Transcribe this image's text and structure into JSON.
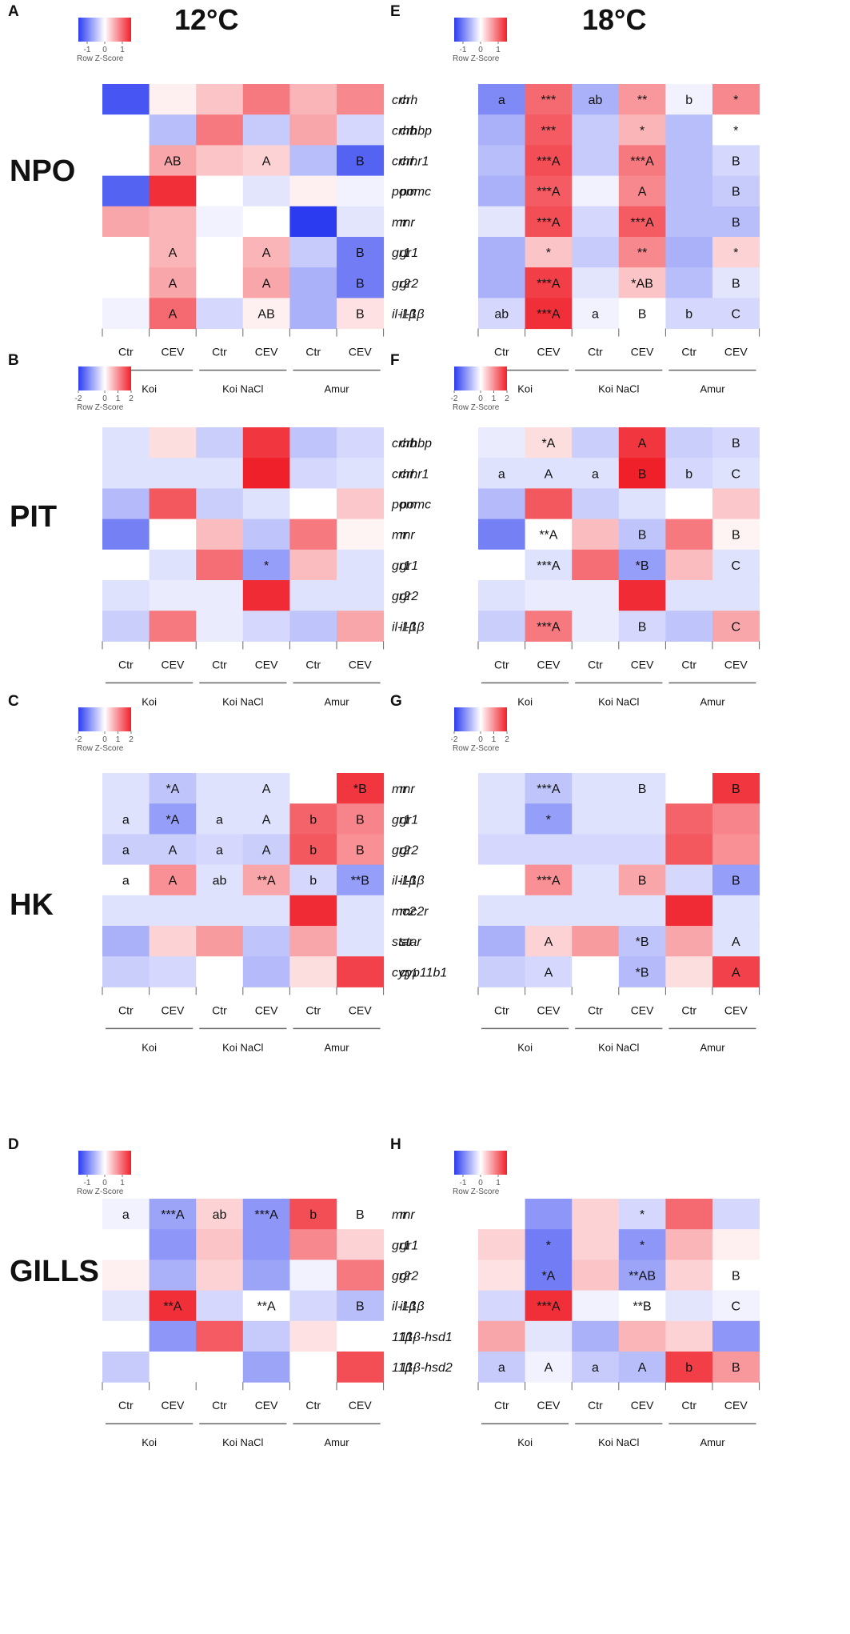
{
  "temps": [
    "12°C",
    "18°C"
  ],
  "tissues": [
    "NPO",
    "PIT",
    "HK",
    "GILLS"
  ],
  "columns": [
    "Ctr",
    "CEV",
    "Ctr",
    "CEV",
    "Ctr",
    "CEV"
  ],
  "groups": [
    "Koi",
    "Koi NaCl",
    "Amur"
  ],
  "scale_title": "Row Z-Score",
  "colors": {
    "low": "#2b3cf0",
    "mid": "#ffffff",
    "high": "#f0202a",
    "text": "#111111",
    "axis": "#666666"
  },
  "chart_data": [
    {
      "type": "heatmap",
      "panel": "A",
      "temp": "12°C",
      "tissue": "NPO",
      "scale_ticks": [
        "-1",
        "0",
        "1"
      ],
      "scale_range": [
        -1.5,
        1.5
      ],
      "rows": [
        "crh",
        "crhbp",
        "crhr1",
        "pomc",
        "mr",
        "gr1",
        "gr2",
        "il-1β"
      ],
      "values": [
        [
          -1.3,
          0.1,
          0.4,
          0.9,
          0.5,
          0.8
        ],
        [
          0.0,
          -0.5,
          0.9,
          -0.4,
          0.6,
          -0.3
        ],
        [
          0.0,
          0.6,
          0.4,
          0.3,
          -0.5,
          -1.2
        ],
        [
          -1.2,
          1.4,
          0.0,
          -0.2,
          0.1,
          -0.1
        ],
        [
          0.6,
          0.5,
          -0.1,
          0.0,
          -1.5,
          -0.2
        ],
        [
          0.0,
          0.5,
          0.0,
          0.5,
          -0.4,
          -1.0
        ],
        [
          0.0,
          0.6,
          0.0,
          0.6,
          -0.6,
          -1.0
        ],
        [
          -0.1,
          1.0,
          -0.3,
          0.1,
          -0.6,
          0.2
        ]
      ],
      "annotations": [
        [
          "",
          "",
          "",
          "",
          "",
          ""
        ],
        [
          "",
          "",
          "",
          "",
          "",
          ""
        ],
        [
          "",
          "AB",
          "",
          "A",
          "",
          "B"
        ],
        [
          "",
          "",
          "",
          "",
          "",
          ""
        ],
        [
          "",
          "",
          "",
          "",
          "",
          ""
        ],
        [
          "",
          "A",
          "",
          "A",
          "",
          "B"
        ],
        [
          "",
          "A",
          "",
          "A",
          "",
          "B"
        ],
        [
          "",
          "A",
          "",
          "AB",
          "",
          "B"
        ]
      ]
    },
    {
      "type": "heatmap",
      "panel": "B",
      "temp": "12°C",
      "tissue": "PIT",
      "scale_ticks": [
        "-2",
        "0",
        "1",
        "2"
      ],
      "scale_range": [
        -2,
        2
      ],
      "rows": [
        "crhbp",
        "crhr1",
        "pomc",
        "mr",
        "gr1",
        "gr2",
        "il-1β"
      ],
      "values": [
        [
          -0.3,
          0.3,
          -0.5,
          1.8,
          -0.6,
          -0.4
        ],
        [
          -0.3,
          -0.3,
          -0.3,
          2.0,
          -0.4,
          -0.3
        ],
        [
          -0.7,
          1.5,
          -0.5,
          -0.3,
          0.0,
          0.5
        ],
        [
          -1.3,
          0.0,
          0.6,
          -0.6,
          1.2,
          0.1
        ],
        [
          0.0,
          -0.3,
          1.3,
          -1.0,
          0.6,
          -0.3
        ],
        [
          -0.3,
          -0.2,
          -0.2,
          1.9,
          -0.3,
          -0.3
        ],
        [
          -0.5,
          1.2,
          -0.2,
          -0.4,
          -0.6,
          0.8
        ]
      ],
      "annotations": [
        [
          "",
          "",
          "",
          "",
          "",
          ""
        ],
        [
          "",
          "",
          "",
          "",
          "",
          ""
        ],
        [
          "",
          "",
          "",
          "",
          "",
          ""
        ],
        [
          "",
          "",
          "",
          "",
          "",
          ""
        ],
        [
          "",
          "",
          "",
          "*",
          "",
          ""
        ],
        [
          "",
          "",
          "",
          "",
          "",
          ""
        ],
        [
          "",
          "",
          "",
          "",
          "",
          ""
        ]
      ]
    },
    {
      "type": "heatmap",
      "panel": "C",
      "temp": "12°C",
      "tissue": "HK",
      "scale_ticks": [
        "-2",
        "0",
        "1",
        "2"
      ],
      "scale_range": [
        -2,
        2
      ],
      "rows": [
        "mr",
        "gr1",
        "gr2",
        "il-1β",
        "mc2r",
        "star",
        "cyp11b1"
      ],
      "values": [
        [
          -0.3,
          -0.6,
          -0.3,
          -0.3,
          0.0,
          1.8
        ],
        [
          -0.3,
          -1.0,
          -0.3,
          -0.3,
          1.4,
          1.1
        ],
        [
          -0.5,
          -0.5,
          -0.4,
          -0.5,
          1.5,
          1.0
        ],
        [
          0.0,
          1.0,
          -0.3,
          0.8,
          -0.4,
          -1.0
        ],
        [
          -0.3,
          -0.3,
          -0.3,
          -0.3,
          1.9,
          -0.3
        ],
        [
          -0.8,
          0.4,
          0.9,
          -0.6,
          0.8,
          -0.3
        ],
        [
          -0.5,
          -0.4,
          0.0,
          -0.7,
          0.3,
          1.7
        ]
      ],
      "annotations": [
        [
          "",
          "*A",
          "",
          "A",
          "",
          "*B"
        ],
        [
          "a",
          "*A",
          "a",
          "A",
          "b",
          "B"
        ],
        [
          "a",
          "A",
          "a",
          "A",
          "b",
          "B"
        ],
        [
          "a",
          "A",
          "ab",
          "**A",
          "b",
          "**B"
        ],
        [
          "",
          "",
          "",
          "",
          "",
          ""
        ],
        [
          "",
          "",
          "",
          "",
          "",
          ""
        ],
        [
          "",
          "",
          "",
          "",
          "",
          ""
        ]
      ]
    },
    {
      "type": "heatmap",
      "panel": "D",
      "temp": "12°C",
      "tissue": "GILLS",
      "scale_ticks": [
        "-1",
        "0",
        "1"
      ],
      "scale_range": [
        -1.5,
        1.5
      ],
      "rows": [
        "mr",
        "gr1",
        "gr2",
        "il-1β",
        "11β-hsd1",
        "11β-hsd2"
      ],
      "values": [
        [
          -0.1,
          -0.7,
          0.3,
          -0.8,
          1.2,
          0.0
        ],
        [
          0.0,
          -0.8,
          0.4,
          -0.8,
          0.8,
          0.3
        ],
        [
          0.1,
          -0.6,
          0.3,
          -0.7,
          -0.1,
          0.9
        ],
        [
          -0.2,
          1.4,
          -0.3,
          0.0,
          -0.3,
          -0.5
        ],
        [
          0.0,
          -0.8,
          1.1,
          -0.4,
          0.2,
          0.0
        ],
        [
          -0.4,
          0.0,
          0.0,
          -0.7,
          0.0,
          1.2
        ]
      ],
      "annotations": [
        [
          "a",
          "***A",
          "ab",
          "***A",
          "b",
          "B"
        ],
        [
          "",
          "",
          "",
          "",
          "",
          ""
        ],
        [
          "",
          "",
          "",
          "",
          "",
          ""
        ],
        [
          "",
          "**A",
          "",
          "**A",
          "",
          "B"
        ],
        [
          "",
          "",
          "",
          "",
          "",
          ""
        ],
        [
          "",
          "",
          "",
          "",
          "",
          ""
        ]
      ]
    },
    {
      "type": "heatmap",
      "panel": "E",
      "temp": "18°C",
      "tissue": "NPO",
      "scale_ticks": [
        "-1",
        "0",
        "1"
      ],
      "scale_range": [
        -1.5,
        1.5
      ],
      "rows": [
        "crh",
        "crhbp",
        "crhr1",
        "pomc",
        "mr",
        "gr1",
        "gr2",
        "il-1β"
      ],
      "values": [
        [
          -0.9,
          1.0,
          -0.6,
          0.7,
          -0.1,
          0.8
        ],
        [
          -0.6,
          1.1,
          -0.4,
          0.5,
          -0.5,
          0.0
        ],
        [
          -0.5,
          1.2,
          -0.4,
          0.9,
          -0.5,
          -0.3
        ],
        [
          -0.6,
          1.1,
          -0.1,
          0.8,
          -0.5,
          -0.4
        ],
        [
          -0.2,
          1.2,
          -0.3,
          1.1,
          -0.5,
          -0.5
        ],
        [
          -0.6,
          0.4,
          -0.4,
          0.8,
          -0.6,
          0.3
        ],
        [
          -0.6,
          1.3,
          -0.2,
          0.4,
          -0.5,
          -0.2
        ],
        [
          -0.3,
          1.4,
          -0.1,
          0.0,
          -0.3,
          -0.3
        ]
      ],
      "annotations": [
        [
          "a",
          "***",
          "ab",
          "**",
          "b",
          "*"
        ],
        [
          "",
          "***",
          "",
          "*",
          "",
          "*"
        ],
        [
          "",
          "***A",
          "",
          "***A",
          "",
          "B"
        ],
        [
          "",
          "***A",
          "",
          "A",
          "",
          "B"
        ],
        [
          "",
          "***A",
          "",
          "***A",
          "",
          "B"
        ],
        [
          "",
          "*",
          "",
          "**",
          "",
          "*"
        ],
        [
          "",
          "***A",
          "",
          "*AB",
          "",
          "B"
        ],
        [
          "ab",
          "***A",
          "a",
          "B",
          "b",
          "C"
        ]
      ]
    },
    {
      "type": "heatmap",
      "panel": "F",
      "temp": "18°C",
      "tissue": "PIT",
      "scale_ticks": [
        "-2",
        "0",
        "1",
        "2"
      ],
      "scale_range": [
        -2,
        2
      ],
      "rows": [
        "crhbp",
        "crhr1",
        "pomc",
        "mr",
        "gr1",
        "gr2",
        "il-1β"
      ],
      "values": [
        [
          -0.2,
          0.3,
          -0.5,
          1.8,
          -0.5,
          -0.4
        ],
        [
          -0.3,
          -0.3,
          -0.3,
          2.0,
          -0.4,
          -0.3
        ],
        [
          -0.7,
          1.5,
          -0.5,
          -0.3,
          0.0,
          0.5
        ],
        [
          -1.3,
          0.0,
          0.6,
          -0.6,
          1.2,
          0.1
        ],
        [
          0.0,
          -0.3,
          1.3,
          -1.0,
          0.6,
          -0.3
        ],
        [
          -0.3,
          -0.2,
          -0.2,
          1.9,
          -0.3,
          -0.3
        ],
        [
          -0.5,
          1.2,
          -0.2,
          -0.4,
          -0.6,
          0.8
        ]
      ],
      "annotations": [
        [
          "",
          "*A",
          "",
          "A",
          "",
          "B"
        ],
        [
          "a",
          "A",
          "a",
          "B",
          "b",
          "C"
        ],
        [
          "",
          "",
          "",
          "",
          "",
          ""
        ],
        [
          "",
          "**A",
          "",
          "B",
          "",
          "B"
        ],
        [
          "",
          "***A",
          "",
          "*B",
          "",
          "C"
        ],
        [
          "",
          "",
          "",
          "",
          "",
          ""
        ],
        [
          "",
          "***A",
          "",
          "B",
          "",
          "C"
        ]
      ]
    },
    {
      "type": "heatmap",
      "panel": "G",
      "temp": "18°C",
      "tissue": "HK",
      "scale_ticks": [
        "-2",
        "0",
        "1",
        "2"
      ],
      "scale_range": [
        -2,
        2
      ],
      "rows": [
        "mr",
        "gr1",
        "gr2",
        "il-1β",
        "mc2r",
        "star",
        "cyp11b1"
      ],
      "values": [
        [
          -0.3,
          -0.6,
          -0.3,
          -0.3,
          0.0,
          1.8
        ],
        [
          -0.3,
          -1.0,
          -0.3,
          -0.3,
          1.4,
          1.1
        ],
        [
          -0.4,
          -0.4,
          -0.4,
          -0.4,
          1.5,
          1.0
        ],
        [
          0.0,
          1.0,
          -0.3,
          0.8,
          -0.4,
          -1.0
        ],
        [
          -0.3,
          -0.3,
          -0.3,
          -0.3,
          1.9,
          -0.3
        ],
        [
          -0.8,
          0.4,
          0.9,
          -0.6,
          0.8,
          -0.3
        ],
        [
          -0.5,
          -0.4,
          0.0,
          -0.7,
          0.3,
          1.7
        ]
      ],
      "annotations": [
        [
          "",
          "***A",
          "",
          "B",
          "",
          "B"
        ],
        [
          "",
          "*",
          "",
          "",
          "",
          ""
        ],
        [
          "",
          "",
          "",
          "",
          "",
          ""
        ],
        [
          "",
          "***A",
          "",
          "B",
          "",
          "B"
        ],
        [
          "",
          "",
          "",
          "",
          "",
          ""
        ],
        [
          "",
          "A",
          "",
          "*B",
          "",
          "A"
        ],
        [
          "",
          "A",
          "",
          "*B",
          "",
          "A"
        ]
      ]
    },
    {
      "type": "heatmap",
      "panel": "H",
      "temp": "18°C",
      "tissue": "GILLS",
      "scale_ticks": [
        "-1",
        "0",
        "1"
      ],
      "scale_range": [
        -1.5,
        1.5
      ],
      "rows": [
        "mr",
        "gr1",
        "gr2",
        "il-1β",
        "11β-hsd1",
        "11β-hsd2"
      ],
      "values": [
        [
          0.0,
          -0.8,
          0.3,
          -0.3,
          1.0,
          -0.3
        ],
        [
          0.3,
          -1.0,
          0.3,
          -0.8,
          0.5,
          0.1
        ],
        [
          0.2,
          -1.0,
          0.4,
          -0.7,
          0.3,
          0.0
        ],
        [
          -0.3,
          1.4,
          -0.1,
          0.0,
          -0.2,
          -0.1
        ],
        [
          0.6,
          -0.2,
          -0.6,
          0.5,
          0.3,
          -0.8
        ],
        [
          -0.4,
          -0.1,
          -0.4,
          -0.5,
          1.3,
          0.7
        ]
      ],
      "annotations": [
        [
          "",
          "",
          "",
          "*",
          "",
          ""
        ],
        [
          "",
          "*",
          "",
          "*",
          "",
          ""
        ],
        [
          "",
          "*A",
          "",
          "**AB",
          "",
          "B"
        ],
        [
          "",
          "***A",
          "",
          "**B",
          "",
          "C"
        ],
        [
          "",
          "",
          "",
          "",
          "",
          ""
        ],
        [
          "a",
          "A",
          "a",
          "A",
          "b",
          "B"
        ]
      ]
    }
  ]
}
